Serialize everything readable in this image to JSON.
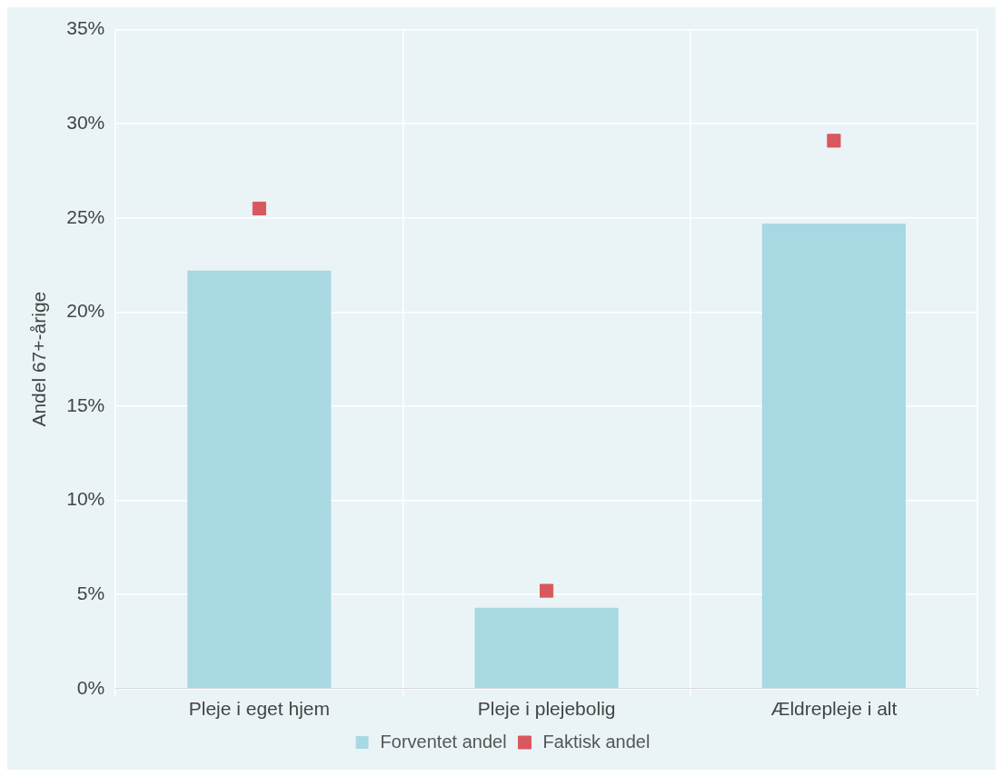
{
  "chart_data": {
    "type": "bar",
    "ylabel": "Andel 67+-årige",
    "categories": [
      "Pleje i eget hjem",
      "Pleje i plejebolig",
      "Ældrepleje i alt"
    ],
    "series": [
      {
        "name": "Forventet andel",
        "color": "#a8d9e3",
        "values": [
          22.2,
          4.3,
          24.7
        ]
      },
      {
        "name": "Faktisk andel",
        "type": "scatter",
        "marker": "square",
        "color": "#d9585e",
        "x": [
          "Pleje i eget hjem",
          "Pleje i plejebolig",
          "Ældrepleje i alt"
        ],
        "values": [
          25.5,
          5.2,
          29.1
        ]
      }
    ],
    "ylim": [
      0,
      35
    ],
    "yticks": [
      {
        "value": 0,
        "label": "0%"
      },
      {
        "value": 5,
        "label": "5%"
      },
      {
        "value": 10,
        "label": "10%"
      },
      {
        "value": 15,
        "label": "15%"
      },
      {
        "value": 20,
        "label": "20%"
      },
      {
        "value": 25,
        "label": "25%"
      },
      {
        "value": 30,
        "label": "30%"
      },
      {
        "value": 35,
        "label": "35%"
      }
    ],
    "grid": true,
    "legend": "bottom"
  }
}
